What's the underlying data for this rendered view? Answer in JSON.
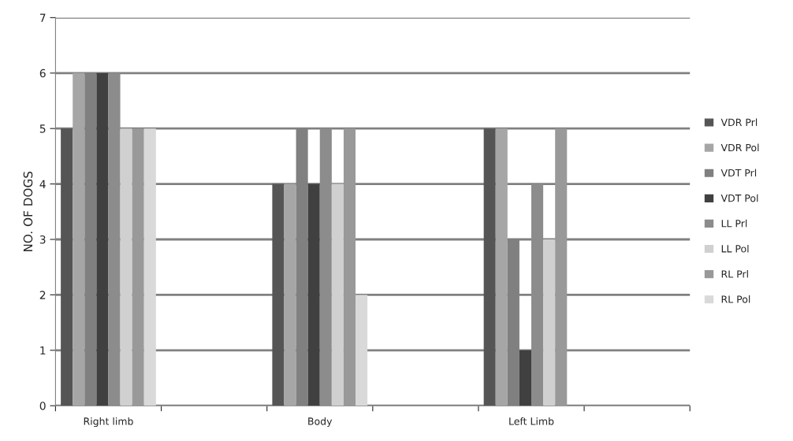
{
  "chart_data": {
    "type": "bar",
    "ylabel": "NO. OF DOGS",
    "categories": [
      "Right limb",
      null,
      "Body",
      null,
      "Left Limb",
      null
    ],
    "series": [
      {
        "name": "VDR Prl",
        "color": "#555555",
        "values": [
          5,
          null,
          4,
          null,
          5,
          null
        ]
      },
      {
        "name": "VDR Pol",
        "color": "#a6a6a6",
        "values": [
          6,
          null,
          4,
          null,
          5,
          null
        ]
      },
      {
        "name": "VDT Prl",
        "color": "#808080",
        "values": [
          6,
          null,
          5,
          null,
          3,
          null
        ]
      },
      {
        "name": "VDT Pol",
        "color": "#404040",
        "values": [
          6,
          null,
          4,
          null,
          1,
          null
        ]
      },
      {
        "name": "LL Prl",
        "color": "#8c8c8c",
        "values": [
          6,
          null,
          5,
          null,
          4,
          null
        ]
      },
      {
        "name": "LL Pol",
        "color": "#d0d0d0",
        "values": [
          5,
          null,
          4,
          null,
          3,
          null
        ]
      },
      {
        "name": "RL Prl",
        "color": "#999999",
        "values": [
          5,
          null,
          5,
          null,
          5,
          null
        ]
      },
      {
        "name": "RL Pol",
        "color": "#d9d9d9",
        "values": [
          5,
          null,
          2,
          null,
          null,
          null
        ]
      }
    ],
    "ylim": [
      0,
      7
    ],
    "yticks": [
      0,
      1,
      2,
      3,
      4,
      5,
      6,
      7
    ],
    "grid": "y",
    "legend": "right"
  }
}
